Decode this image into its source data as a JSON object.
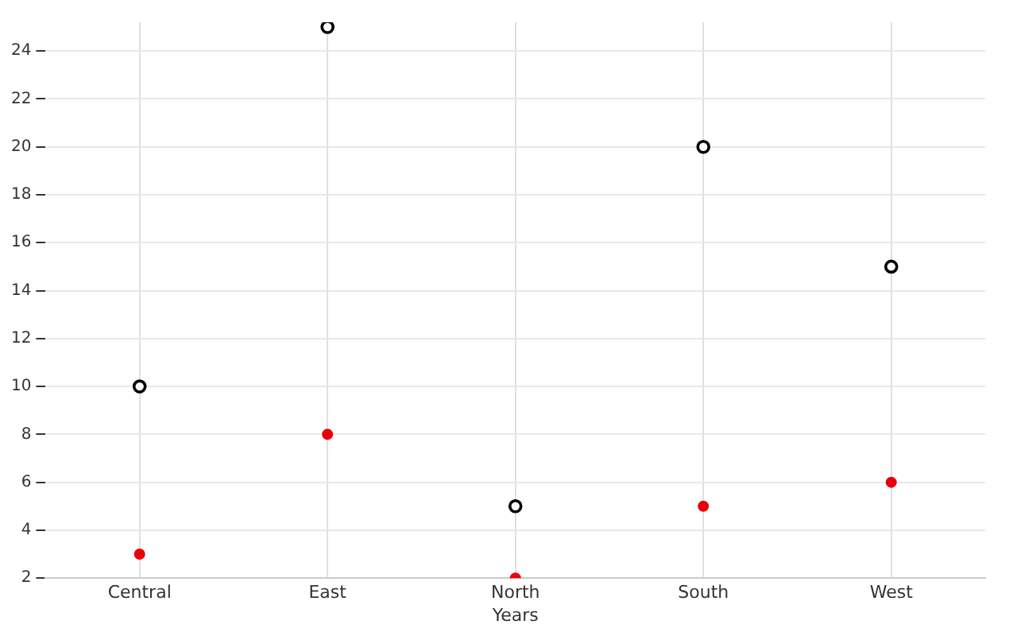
{
  "chart_data": {
    "type": "scatter",
    "xlabel": "Years",
    "categories": [
      "Central",
      "East",
      "North",
      "South",
      "West"
    ],
    "series": [
      {
        "color": "#000000",
        "values": [
          10,
          25,
          5,
          20,
          15
        ]
      },
      {
        "color": "#e8000b",
        "values": [
          3,
          8,
          2,
          5,
          6
        ]
      }
    ],
    "ylim": [
      2,
      25.2
    ],
    "yticks": [
      2,
      4,
      6,
      8,
      10,
      12,
      14,
      16,
      18,
      20,
      22,
      24
    ],
    "grid": true,
    "marker": "circle"
  }
}
